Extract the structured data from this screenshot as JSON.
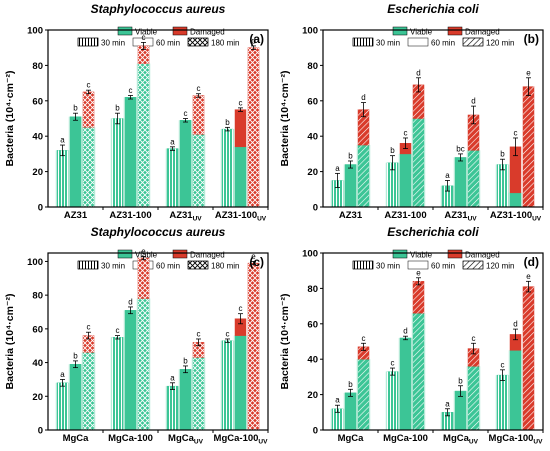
{
  "legend_labels": {
    "viable": "Viable",
    "damaged": "Damaged"
  },
  "colors": {
    "viable": "#3cc596",
    "damaged": "#d93b2b",
    "frame": "#000000"
  },
  "chart_data": [
    {
      "panel_label": "(a)",
      "type": "bar",
      "title": "Staphylococcus aureus",
      "ylabel": "Bacteria (10⁴·cm⁻²)",
      "ylim": [
        0,
        100
      ],
      "yticks": [
        0,
        20,
        40,
        60,
        80,
        100
      ],
      "categories": [
        {
          "label": "AZ31",
          "sub": ""
        },
        {
          "label": "AZ31-100",
          "sub": ""
        },
        {
          "label": "AZ31",
          "sub": "UV"
        },
        {
          "label": "AZ31-100",
          "sub": "UV"
        }
      ],
      "time_labels": [
        "30 min",
        "60 min",
        "180 min"
      ],
      "time_patterns": [
        "vlines",
        "plain",
        "cross"
      ],
      "series": [
        {
          "time": "30 min",
          "viable": [
            32,
            50,
            33,
            44
          ],
          "damaged": [
            0,
            0,
            0,
            0
          ],
          "error": [
            3,
            3,
            1,
            1
          ],
          "letters": [
            "a",
            "b",
            "a",
            "b"
          ]
        },
        {
          "time": "60 min",
          "viable": [
            51,
            62,
            49,
            34
          ],
          "damaged": [
            0,
            0,
            0,
            21
          ],
          "error": [
            2,
            1,
            1,
            1
          ],
          "letters": [
            "b",
            "c",
            "c",
            "c"
          ]
        },
        {
          "time": "180 min",
          "viable": [
            45,
            81,
            41,
            0
          ],
          "damaged": [
            20,
            10,
            22,
            90
          ],
          "error": [
            1,
            2,
            1,
            1
          ],
          "letters": [
            "c",
            "c",
            "c",
            "d"
          ]
        }
      ]
    },
    {
      "panel_label": "(b)",
      "type": "bar",
      "title": "Escherichia coli",
      "ylabel": "Bacteria (10⁴·cm⁻²)",
      "ylim": [
        0,
        100
      ],
      "yticks": [
        0,
        20,
        40,
        60,
        80,
        100
      ],
      "categories": [
        {
          "label": "AZ31",
          "sub": ""
        },
        {
          "label": "AZ31-100",
          "sub": ""
        },
        {
          "label": "AZ31",
          "sub": "UV"
        },
        {
          "label": "AZ31-100",
          "sub": "UV"
        }
      ],
      "time_labels": [
        "30 min",
        "60 min",
        "120 min"
      ],
      "time_patterns": [
        "vlines",
        "plain",
        "dlines"
      ],
      "series": [
        {
          "time": "30 min",
          "viable": [
            15,
            25,
            12,
            24
          ],
          "damaged": [
            0,
            0,
            0,
            0
          ],
          "error": [
            4,
            4,
            3,
            3
          ],
          "letters": [
            "a",
            "b",
            "a",
            "b"
          ]
        },
        {
          "time": "60 min",
          "viable": [
            24,
            30,
            28,
            8
          ],
          "damaged": [
            0,
            6,
            0,
            26
          ],
          "error": [
            2,
            3,
            2,
            5
          ],
          "letters": [
            "b",
            "c",
            "bc",
            "c"
          ]
        },
        {
          "time": "120 min",
          "viable": [
            35,
            50,
            32,
            0
          ],
          "damaged": [
            20,
            19,
            20,
            68
          ],
          "error": [
            4,
            4,
            5,
            5
          ],
          "letters": [
            "d",
            "d",
            "d",
            "e"
          ]
        }
      ]
    },
    {
      "panel_label": "(c)",
      "type": "bar",
      "title": "Staphylococcus aureus",
      "ylabel": "Bacteria (10⁴·cm⁻²)",
      "ylim": [
        0,
        105
      ],
      "yticks": [
        0,
        20,
        40,
        60,
        80,
        100
      ],
      "categories": [
        {
          "label": "MgCa",
          "sub": ""
        },
        {
          "label": "MgCa-100",
          "sub": ""
        },
        {
          "label": "MgCa",
          "sub": "UV"
        },
        {
          "label": "MgCa-100",
          "sub": "UV"
        }
      ],
      "time_labels": [
        "30 min",
        "60 min",
        "180 min"
      ],
      "time_patterns": [
        "vlines",
        "plain",
        "cross"
      ],
      "series": [
        {
          "time": "30 min",
          "viable": [
            28,
            55,
            26,
            53
          ],
          "damaged": [
            0,
            0,
            0,
            0
          ],
          "error": [
            2,
            1,
            2,
            1
          ],
          "letters": [
            "a",
            "c",
            "a",
            "c"
          ]
        },
        {
          "time": "60 min",
          "viable": [
            39,
            71,
            36,
            56
          ],
          "damaged": [
            0,
            0,
            0,
            10
          ],
          "error": [
            2,
            2,
            2,
            3
          ],
          "letters": [
            "b",
            "d",
            "b",
            "c"
          ]
        },
        {
          "time": "180 min",
          "viable": [
            46,
            78,
            43,
            0
          ],
          "damaged": [
            10,
            24,
            9,
            99
          ],
          "error": [
            2,
            1,
            2,
            1
          ],
          "letters": [
            "c",
            "e",
            "c",
            "e"
          ]
        }
      ]
    },
    {
      "panel_label": "(d)",
      "type": "bar",
      "title": "Escherichia coli",
      "ylabel": "Bacteria (10⁴·cm⁻²)",
      "ylim": [
        0,
        100
      ],
      "yticks": [
        0,
        20,
        40,
        60,
        80,
        100
      ],
      "categories": [
        {
          "label": "MgCa",
          "sub": ""
        },
        {
          "label": "MgCa-100",
          "sub": ""
        },
        {
          "label": "MgCa",
          "sub": "UV"
        },
        {
          "label": "MgCa-100",
          "sub": "UV"
        }
      ],
      "time_labels": [
        "30 min",
        "60 min",
        "120 min"
      ],
      "time_patterns": [
        "vlines",
        "plain",
        "dlines"
      ],
      "series": [
        {
          "time": "30 min",
          "viable": [
            12,
            33,
            10,
            31
          ],
          "damaged": [
            0,
            0,
            0,
            0
          ],
          "error": [
            2,
            2,
            2,
            3
          ],
          "letters": [
            "a",
            "c",
            "a",
            "c"
          ]
        },
        {
          "time": "60 min",
          "viable": [
            21,
            52,
            22,
            45
          ],
          "damaged": [
            0,
            0,
            0,
            9
          ],
          "error": [
            2,
            1,
            3,
            3
          ],
          "letters": [
            "b",
            "d",
            "b",
            "d"
          ]
        },
        {
          "time": "120 min",
          "viable": [
            40,
            66,
            36,
            0
          ],
          "damaged": [
            7,
            18,
            10,
            81
          ],
          "error": [
            2,
            2,
            3,
            3
          ],
          "letters": [
            "c",
            "e",
            "c",
            "e"
          ]
        }
      ]
    }
  ]
}
